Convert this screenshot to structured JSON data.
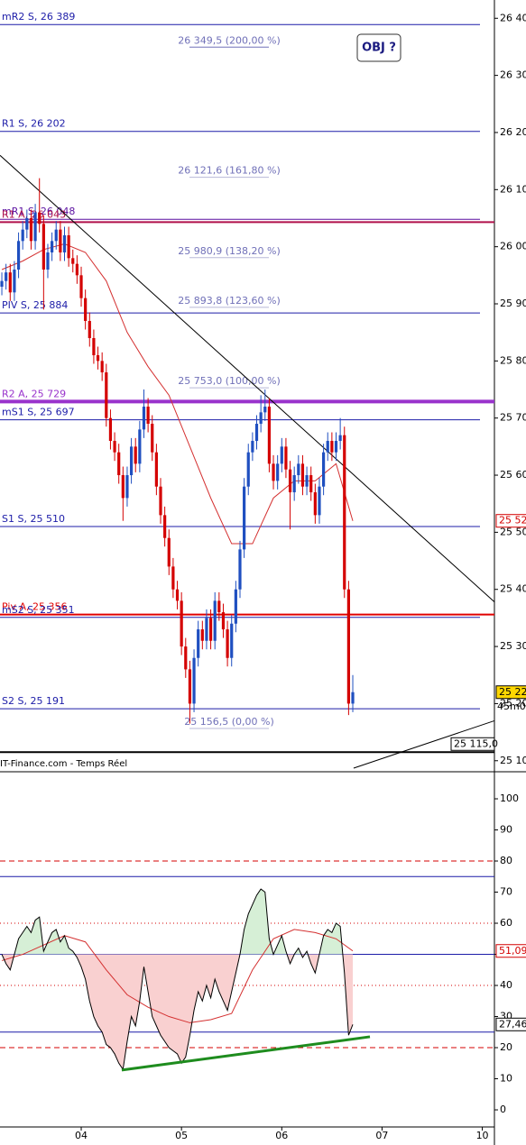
{
  "chart_data": [
    {
      "type": "candlestick",
      "source": "IT-Finance.com - Temps Réel",
      "objective": "OBJ ?",
      "xlim": [
        -0.44,
        117.9
      ],
      "ylim": [
        25087,
        26432
      ],
      "yticks": [
        {
          "value": 26400,
          "label": "26 400"
        },
        {
          "value": 26300,
          "label": "26 300"
        },
        {
          "value": 26200,
          "label": "26 200"
        },
        {
          "value": 26100,
          "label": "26 100"
        },
        {
          "value": 26000,
          "label": "26 000"
        },
        {
          "value": 25900,
          "label": "25 900"
        },
        {
          "value": 25800,
          "label": "25 800"
        },
        {
          "value": 25700,
          "label": "25 700"
        },
        {
          "value": 25600,
          "label": "25 600"
        },
        {
          "value": 25500,
          "label": "25 500"
        },
        {
          "value": 25400,
          "label": "25 400"
        },
        {
          "value": 25300,
          "label": "25 300"
        },
        {
          "value": 25200,
          "label": "25 200"
        },
        {
          "value": 25100,
          "label": "25 100"
        }
      ],
      "x": [
        0,
        1,
        2,
        3,
        4,
        5,
        6,
        7,
        8,
        9,
        10,
        11,
        12,
        13,
        14,
        15,
        16,
        17,
        18,
        19,
        20,
        21,
        22,
        23,
        24,
        25,
        26,
        27,
        28,
        29,
        30,
        31,
        32,
        33,
        34,
        35,
        36,
        37,
        38,
        39,
        40,
        41,
        42,
        43,
        44,
        45,
        46,
        47,
        48,
        49,
        50,
        51,
        52,
        53,
        54,
        55,
        56,
        57,
        58,
        59,
        60,
        61,
        62,
        63,
        64,
        65,
        66,
        67,
        68,
        69,
        70,
        71,
        72,
        73,
        74,
        75,
        76,
        77,
        78,
        79,
        80,
        81,
        82,
        83,
        84
      ],
      "open": [
        25930,
        25940,
        25955,
        25920,
        25960,
        26010,
        26030,
        26050,
        26010,
        26060,
        26040,
        25960,
        25990,
        26010,
        26030,
        25990,
        26020,
        25980,
        25970,
        25950,
        25910,
        25870,
        25840,
        25810,
        25800,
        25780,
        25700,
        25660,
        25640,
        25600,
        25560,
        25600,
        25650,
        25620,
        25680,
        25720,
        25690,
        25640,
        25580,
        25530,
        25490,
        25440,
        25400,
        25380,
        25300,
        25260,
        25200,
        25280,
        25330,
        25310,
        25350,
        25310,
        25380,
        25360,
        25330,
        25280,
        25340,
        25400,
        25470,
        25580,
        25640,
        25660,
        25690,
        25710,
        25720,
        25620,
        25590,
        25620,
        25650,
        25610,
        25570,
        25600,
        25620,
        25580,
        25600,
        25570,
        25530,
        25580,
        25640,
        25660,
        25640,
        25660,
        25670,
        25400,
        25200
      ],
      "high": [
        25955,
        25970,
        25970,
        25975,
        26025,
        26045,
        26065,
        26065,
        26075,
        26120,
        26055,
        26005,
        26025,
        26045,
        26045,
        26035,
        26035,
        25995,
        25985,
        25965,
        25925,
        25885,
        25855,
        25825,
        25815,
        25795,
        25715,
        25675,
        25655,
        25615,
        25615,
        25665,
        25665,
        25695,
        25750,
        25735,
        25705,
        25655,
        25595,
        25545,
        25505,
        25455,
        25415,
        25395,
        25315,
        25275,
        25295,
        25345,
        25345,
        25365,
        25365,
        25395,
        25395,
        25375,
        25345,
        25355,
        25415,
        25485,
        25595,
        25655,
        25675,
        25705,
        25740,
        25750,
        25735,
        25635,
        25635,
        25665,
        25665,
        25625,
        25615,
        25635,
        25635,
        25615,
        25615,
        25585,
        25595,
        25655,
        25675,
        25675,
        25675,
        25700,
        25685,
        25415,
        25250
      ],
      "low": [
        25915,
        25925,
        25905,
        25905,
        25945,
        25995,
        26015,
        25995,
        25995,
        26025,
        25890,
        25945,
        25975,
        25995,
        25975,
        25975,
        25965,
        25955,
        25935,
        25895,
        25855,
        25825,
        25795,
        25785,
        25765,
        25685,
        25645,
        25625,
        25585,
        25520,
        25545,
        25585,
        25605,
        25605,
        25665,
        25675,
        25625,
        25565,
        25515,
        25475,
        25425,
        25385,
        25365,
        25285,
        25245,
        25165,
        25185,
        25265,
        25295,
        25295,
        25295,
        25295,
        25345,
        25315,
        25265,
        25265,
        25325,
        25385,
        25455,
        25565,
        25625,
        25645,
        25675,
        25695,
        25605,
        25575,
        25575,
        25605,
        25595,
        25505,
        25555,
        25585,
        25565,
        25565,
        25555,
        25515,
        25515,
        25565,
        25625,
        25625,
        25625,
        25645,
        25385,
        25180,
        25185
      ],
      "close": [
        25940,
        25955,
        25920,
        25960,
        26010,
        26030,
        26050,
        26010,
        26060,
        26040,
        25960,
        25990,
        26010,
        26030,
        25990,
        26020,
        25980,
        25970,
        25950,
        25910,
        25870,
        25840,
        25810,
        25800,
        25780,
        25700,
        25660,
        25640,
        25600,
        25560,
        25600,
        25650,
        25620,
        25680,
        25720,
        25690,
        25640,
        25580,
        25530,
        25490,
        25440,
        25400,
        25380,
        25300,
        25260,
        25200,
        25280,
        25330,
        25310,
        25350,
        25310,
        25380,
        25360,
        25330,
        25280,
        25340,
        25400,
        25470,
        25580,
        25640,
        25660,
        25690,
        25710,
        25720,
        25620,
        25590,
        25620,
        25650,
        25610,
        25570,
        25600,
        25620,
        25580,
        25600,
        25570,
        25530,
        25580,
        25640,
        25660,
        25640,
        25660,
        25670,
        25400,
        25200,
        25220
      ],
      "up_color": "#1f4fc0",
      "down_color": "#d40000",
      "ma": {
        "color": "#d43030",
        "x": [
          0,
          5,
          10,
          15,
          20,
          25,
          30,
          35,
          40,
          45,
          50,
          55,
          60,
          65,
          70,
          75,
          80,
          84
        ],
        "values": [
          25960,
          25975,
          25995,
          26005,
          25990,
          25940,
          25850,
          25790,
          25740,
          25650,
          25560,
          25480,
          25480,
          25560,
          25590,
          25590,
          25620,
          25520
        ]
      },
      "levels": [
        {
          "label": "mR2 S, 26 389",
          "value": 26389,
          "color": "#1c1ca8",
          "width": 1
        },
        {
          "label": "R1 S, 26 202",
          "value": 26202,
          "color": "#1c1ca8",
          "width": 1
        },
        {
          "label": "mR1 S, 26 048",
          "value": 26048,
          "color": "#5a0fa0",
          "width": 1
        },
        {
          "label": "R1 A, 26 043",
          "value": 26043,
          "color": "#b0104a",
          "width": 2
        },
        {
          "label": "PIV S, 25 884",
          "value": 25884,
          "color": "#1c1ca8",
          "width": 1
        },
        {
          "label": "R2 A, 25 729",
          "value": 25729,
          "color": "#9933cc",
          "width": 4
        },
        {
          "label": "mS1 S, 25 697",
          "value": 25697,
          "color": "#1c1ca8",
          "width": 1
        },
        {
          "label": "S1 S, 25 510",
          "value": 25510,
          "color": "#1c1ca8",
          "width": 1
        },
        {
          "label": "Piv A, 25 356",
          "value": 25356,
          "color": "#e00000",
          "width": 2
        },
        {
          "label": "mS2 S, 25 351",
          "value": 25351,
          "color": "#1c1ca8",
          "width": 1
        },
        {
          "label": "S2 S, 25 191",
          "value": 25191,
          "color": "#1c1ca8",
          "width": 1
        }
      ],
      "fib_levels": [
        {
          "label": "26 349,5 (200,00 %)",
          "value": 26349.5
        },
        {
          "label": "26 121,6 (161,80 %)",
          "value": 26121.6
        },
        {
          "label": "25 980,9 (138,20 %)",
          "value": 25980.9
        },
        {
          "label": "25 893,8 (123,60 %)",
          "value": 25893.8
        },
        {
          "label": "25 753,0 (100,00 %)",
          "value": 25753.0
        },
        {
          "label": "25 156,5 (0,00 %)",
          "value": 25156.5
        }
      ],
      "trendlines": [
        {
          "x": [
            -0.44,
            117.9
          ],
          "y": [
            26160,
            25378
          ]
        },
        {
          "x": [
            84.2,
            117.9
          ],
          "y": [
            25087,
            25170
          ]
        }
      ],
      "trendline_tag": {
        "value": 25115,
        "label": "25 115,0"
      },
      "price_tags": [
        {
          "value": 25520,
          "label": "25 52",
          "color": "#d40000",
          "background": "#ffffff"
        },
        {
          "value": 25220,
          "label": "25 22",
          "color": "#000000",
          "background": "#ffd700"
        }
      ],
      "timer": "45m0"
    },
    {
      "type": "line",
      "xlim": [
        -0.44,
        117.9
      ],
      "ylim": [
        -5.5,
        108.7
      ],
      "yticks": [
        0,
        10,
        20,
        30,
        40,
        50,
        60,
        70,
        80,
        90,
        100
      ],
      "xticks": [
        {
          "value": 19,
          "label": "04"
        },
        {
          "value": 43,
          "label": "05"
        },
        {
          "value": 67,
          "label": "06"
        },
        {
          "value": 91,
          "label": "07"
        },
        {
          "value": 115,
          "label": "10"
        }
      ],
      "x": [
        0,
        1,
        2,
        3,
        4,
        5,
        6,
        7,
        8,
        9,
        10,
        11,
        12,
        13,
        14,
        15,
        16,
        17,
        18,
        19,
        20,
        21,
        22,
        23,
        24,
        25,
        26,
        27,
        28,
        29,
        30,
        31,
        32,
        33,
        34,
        35,
        36,
        37,
        38,
        39,
        40,
        41,
        42,
        43,
        44,
        45,
        46,
        47,
        48,
        49,
        50,
        51,
        52,
        53,
        54,
        55,
        56,
        57,
        58,
        59,
        60,
        61,
        62,
        63,
        64,
        65,
        66,
        67,
        68,
        69,
        70,
        71,
        72,
        73,
        74,
        75,
        76,
        77,
        78,
        79,
        80,
        81,
        82,
        83,
        84
      ],
      "values": [
        50,
        47,
        45,
        50,
        55,
        57,
        59,
        57,
        61,
        62,
        51,
        54,
        57,
        58,
        54,
        56,
        52,
        51,
        49,
        46,
        42,
        35,
        30,
        27,
        25,
        21,
        20,
        18,
        15,
        13,
        22,
        30,
        27,
        35,
        46,
        38,
        30,
        27,
        24,
        22,
        20,
        19,
        18,
        15,
        17,
        24,
        32,
        38,
        35,
        40,
        36,
        42,
        38,
        35,
        32,
        38,
        44,
        50,
        58,
        63,
        66,
        69,
        71,
        70,
        55,
        50,
        53,
        56,
        51,
        47,
        50,
        52,
        49,
        51,
        47,
        44,
        50,
        56,
        58,
        57,
        60,
        59,
        44,
        24,
        27.46
      ],
      "color": "#000000",
      "fill_baseline": 50,
      "fill_above": "#d6efd6",
      "fill_below": "#f9d0d0",
      "ma": {
        "color": "#d43030",
        "x": [
          0,
          5,
          10,
          15,
          20,
          25,
          30,
          35,
          40,
          45,
          50,
          55,
          60,
          65,
          70,
          75,
          80,
          84
        ],
        "values": [
          48,
          50,
          53,
          56,
          54,
          45,
          37,
          33,
          30,
          28,
          29,
          31,
          45,
          55,
          58,
          57,
          55,
          51.09
        ]
      },
      "levels": [
        {
          "value": 80,
          "color": "#d40000",
          "style": "dashed"
        },
        {
          "value": 75,
          "color": "#1c1ca8",
          "style": "solid"
        },
        {
          "value": 60,
          "color": "#d40000",
          "style": "dotted"
        },
        {
          "value": 50,
          "color": "#1c1ca8",
          "style": "solid"
        },
        {
          "value": 40,
          "color": "#d40000",
          "style": "dotted"
        },
        {
          "value": 25,
          "color": "#1c1ca8",
          "style": "solid"
        },
        {
          "value": 20,
          "color": "#d40000",
          "style": "dashed"
        }
      ],
      "support": {
        "x": [
          28.7,
          88.1
        ],
        "y": [
          12.8,
          23.5
        ],
        "color": "#1e8c1e"
      },
      "tags": [
        {
          "value": 51.09,
          "label": "51,09",
          "color": "#d40000"
        },
        {
          "value": 27.46,
          "label": "27,46",
          "color": "#000000"
        }
      ]
    }
  ]
}
